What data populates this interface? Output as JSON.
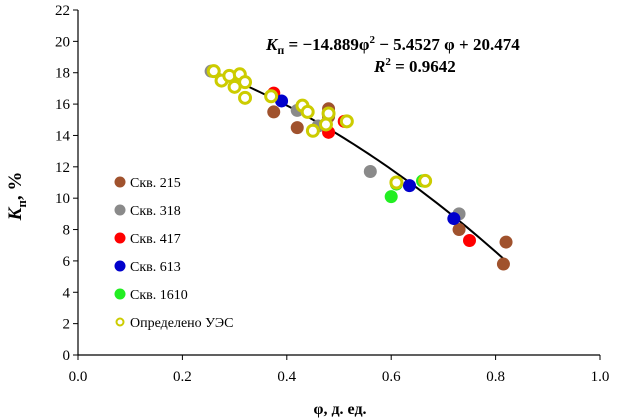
{
  "chart_data": {
    "type": "scatter",
    "title": "",
    "xlabel": "φ, д. ед.",
    "ylabel": {
      "main": "K",
      "sub": "п",
      "suffix": ", %"
    },
    "xlim": [
      0.0,
      1.0
    ],
    "ylim": [
      0,
      22
    ],
    "xticks": [
      "0.0",
      "0.2",
      "0.4",
      "0.6",
      "0.8",
      "1.0"
    ],
    "yticks": [
      "0",
      "2",
      "4",
      "6",
      "8",
      "10",
      "12",
      "14",
      "16",
      "18",
      "20",
      "22"
    ],
    "grid": false,
    "legend_position": "left-bottom",
    "equation": {
      "symbol": "K",
      "sub": "п",
      "lhs_rest": " = −14.889φ",
      "sup": "2",
      "rhs": " − 5.4527 φ + 20.474",
      "r2_label": "R",
      "r2_sup": "2",
      "r2_value": " = 0.9642"
    },
    "fit": {
      "a": -14.889,
      "b": -5.4527,
      "c": 20.474,
      "x_range": [
        0.255,
        0.82
      ]
    },
    "series": [
      {
        "name": "Скв. 215",
        "color": "#a0522d",
        "marker": "filled",
        "points": [
          [
            0.375,
            15.5
          ],
          [
            0.42,
            14.5
          ],
          [
            0.48,
            15.7
          ],
          [
            0.48,
            15.2
          ],
          [
            0.73,
            8.0
          ],
          [
            0.815,
            5.8
          ],
          [
            0.82,
            7.2
          ]
        ]
      },
      {
        "name": "Скв. 318",
        "color": "#8a8a8a",
        "marker": "filled",
        "points": [
          [
            0.255,
            18.1
          ],
          [
            0.42,
            15.6
          ],
          [
            0.46,
            14.6
          ],
          [
            0.56,
            11.7
          ],
          [
            0.73,
            9.0
          ]
        ]
      },
      {
        "name": "Скв. 417",
        "color": "#ff0000",
        "marker": "filled",
        "points": [
          [
            0.375,
            16.7
          ],
          [
            0.48,
            14.2
          ],
          [
            0.51,
            14.9
          ],
          [
            0.75,
            7.3
          ]
        ]
      },
      {
        "name": "Скв. 613",
        "color": "#0000cc",
        "marker": "filled",
        "points": [
          [
            0.39,
            16.2
          ],
          [
            0.635,
            10.8
          ],
          [
            0.72,
            8.7
          ]
        ]
      },
      {
        "name": "Скв. 1610",
        "color": "#22ee22",
        "marker": "filled",
        "points": [
          [
            0.6,
            10.1
          ],
          [
            0.61,
            10.9
          ],
          [
            0.66,
            11.1
          ]
        ]
      },
      {
        "name": "Определено УЭС",
        "color": "#cccc00",
        "marker": "hollow",
        "points": [
          [
            0.26,
            18.1
          ],
          [
            0.275,
            17.5
          ],
          [
            0.29,
            17.8
          ],
          [
            0.3,
            17.1
          ],
          [
            0.31,
            17.9
          ],
          [
            0.32,
            17.4
          ],
          [
            0.32,
            16.4
          ],
          [
            0.37,
            16.5
          ],
          [
            0.43,
            15.9
          ],
          [
            0.44,
            15.5
          ],
          [
            0.45,
            14.3
          ],
          [
            0.475,
            14.7
          ],
          [
            0.48,
            15.4
          ],
          [
            0.515,
            14.9
          ],
          [
            0.61,
            11.0
          ],
          [
            0.665,
            11.1
          ]
        ]
      }
    ]
  }
}
